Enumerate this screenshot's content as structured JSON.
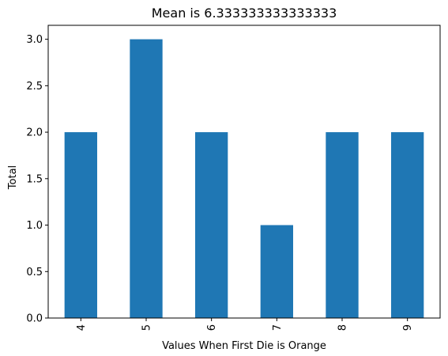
{
  "chart_data": {
    "type": "bar",
    "title": "Mean is 6.333333333333333",
    "xlabel": "Values When First Die is Orange",
    "ylabel": "Total",
    "categories": [
      "4",
      "5",
      "6",
      "7",
      "8",
      "9"
    ],
    "values": [
      2,
      3,
      2,
      1,
      2,
      2
    ],
    "ylim": [
      0,
      3.15
    ],
    "yticks": [
      0.0,
      0.5,
      1.0,
      1.5,
      2.0,
      2.5,
      3.0
    ],
    "ytick_labels": [
      "0.0",
      "0.5",
      "1.0",
      "1.5",
      "2.0",
      "2.5",
      "3.0"
    ],
    "bar_color": "#1f77b4",
    "grid": false,
    "legend": "none"
  }
}
